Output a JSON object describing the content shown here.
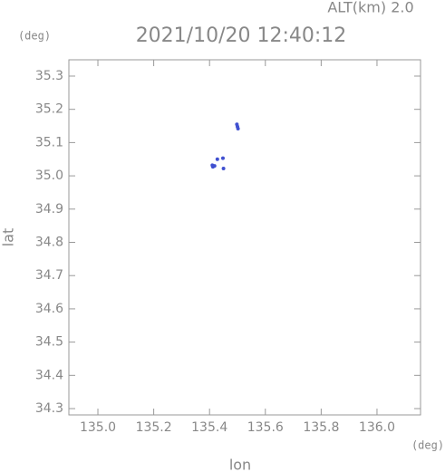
{
  "chart_data": {
    "type": "scatter",
    "title": "2021/10/20 12:40:12",
    "annotation": "ALT(km)  2.0",
    "y_unit": "(deg)",
    "x_unit": "(deg)",
    "x_label": "lon",
    "y_label": "lat",
    "xlim": [
      134.896,
      136.156
    ],
    "ylim": [
      34.281,
      35.349
    ],
    "xticks": [
      {
        "value": 135.0,
        "label": "135.0"
      },
      {
        "value": 135.2,
        "label": "135.2"
      },
      {
        "value": 135.4,
        "label": "135.4"
      },
      {
        "value": 135.6,
        "label": "135.6"
      },
      {
        "value": 135.8,
        "label": "135.8"
      },
      {
        "value": 136.0,
        "label": "136.0"
      }
    ],
    "yticks": [
      {
        "value": 34.3,
        "label": "34.3"
      },
      {
        "value": 34.4,
        "label": "34.4"
      },
      {
        "value": 34.5,
        "label": "34.5"
      },
      {
        "value": 34.6,
        "label": "34.6"
      },
      {
        "value": 34.7,
        "label": "34.7"
      },
      {
        "value": 34.8,
        "label": "34.8"
      },
      {
        "value": 34.9,
        "label": "34.9"
      },
      {
        "value": 35.0,
        "label": "35.0"
      },
      {
        "value": 35.1,
        "label": "35.1"
      },
      {
        "value": 35.2,
        "label": "35.2"
      },
      {
        "value": 35.3,
        "label": "35.3"
      }
    ],
    "series": [
      {
        "color": "#4050d0",
        "x": [
          135.498,
          135.5,
          135.502,
          135.41,
          135.412,
          135.418,
          135.428,
          135.448,
          135.45
        ],
        "values": [
          35.155,
          35.148,
          35.142,
          35.032,
          35.027,
          35.03,
          35.05,
          35.053,
          35.022
        ]
      }
    ]
  }
}
